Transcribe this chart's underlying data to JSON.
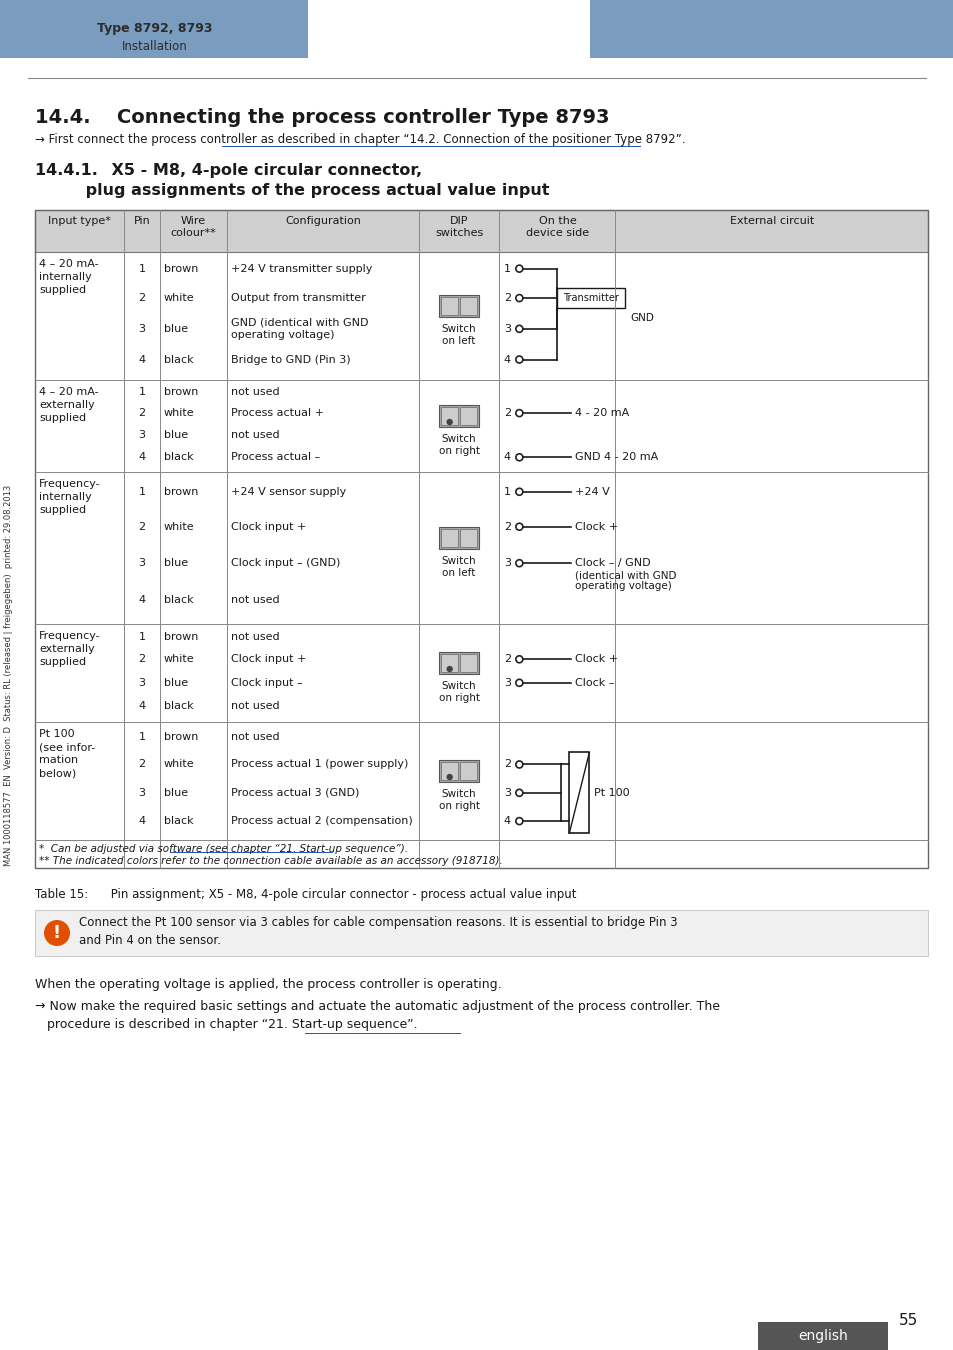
{
  "bg_color": "#ffffff",
  "header_bar_color": "#7a9cbf",
  "header_text_left": "Type 8792, 8793",
  "header_subtext_left": "Installation",
  "burkert_color": "#7a9cbf",
  "section_title": "14.4.  Connecting the process controller Type 8793",
  "arrow_text": "→ First connect the process controller as described in chapter “14.2. Connection of the positioner Type 8792”.",
  "subsection_title_line1": "14.4.1.  X5 - M8, 4-pole circular connector,",
  "subsection_title_line2": "         plug assignments of the process actual value input",
  "footer_note1": "*  Can be adjusted via software (see chapter “21. Start-up sequence”).",
  "footer_note2": "** The indicated colors refer to the connection cable available as an accessory (918718).",
  "table_caption": "Table 15:      Pin assignment; X5 - M8, 4-pole circular connector - process actual value input",
  "info_text": "Connect the Pt 100 sensor via 3 cables for cable compensation reasons. It is essential to bridge Pin 3\nand Pin 4 on the sensor.",
  "bottom_text1": "When the operating voltage is applied, the process controller is operating.",
  "bottom_text2": "→ Now make the required basic settings and actuate the automatic adjustment of the process controller. The\n   procedure is described in chapter “21. Start-up sequence”.",
  "page_num": "55",
  "lang_label": "english",
  "sidebar_text": "MAN 1000118577  EN  Version: D  Status: RL (released | freigegeben)  printed: 29.08.2013"
}
